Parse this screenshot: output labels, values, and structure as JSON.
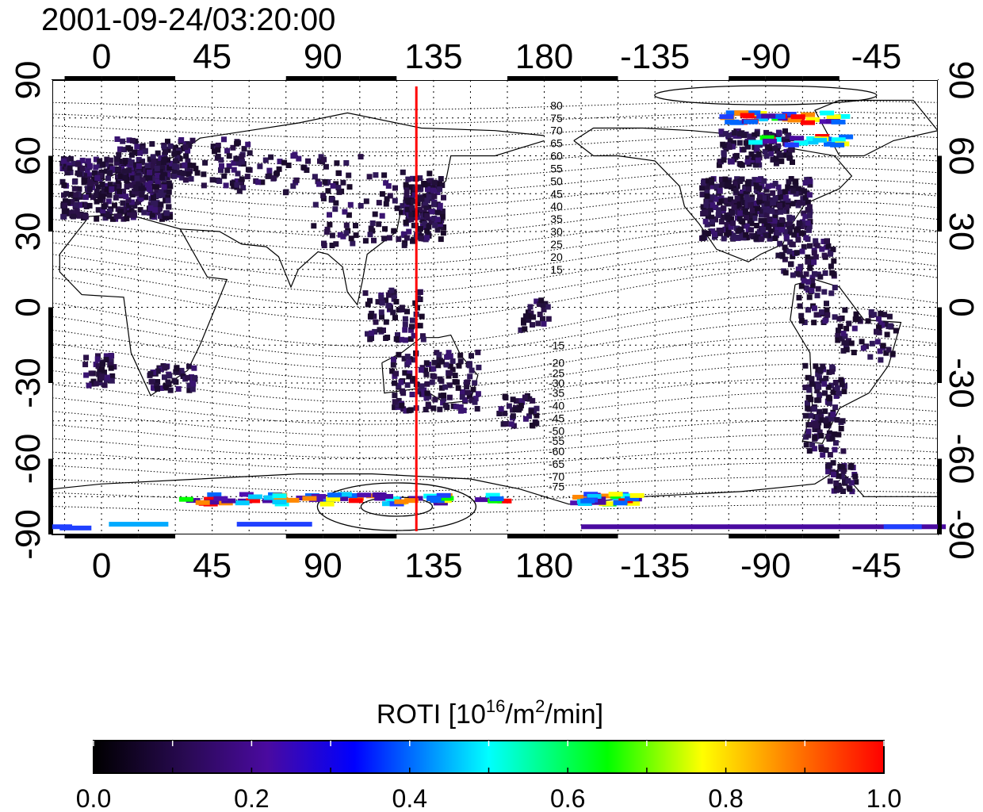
{
  "title": "2001-09-24/03:20:00",
  "top_axis_labels": [
    "0",
    "45",
    "90",
    "135",
    "180",
    "-135",
    "-90",
    "-45"
  ],
  "bottom_axis_labels": [
    "0",
    "45",
    "90",
    "135",
    "180",
    "-135",
    "-90",
    "-45"
  ],
  "left_axis_labels": [
    "90",
    "60",
    "30",
    "0",
    "-30",
    "-60",
    "-90"
  ],
  "right_axis_labels": [
    "90",
    "60",
    "30",
    "0",
    "-30",
    "-60",
    "-90"
  ],
  "contour_labels_north": [
    "80",
    "75",
    "70",
    "65",
    "60",
    "55",
    "50",
    "45",
    "40",
    "35",
    "30",
    "25",
    "20",
    "15"
  ],
  "contour_labels_south": [
    "-15",
    "-20",
    "-25",
    "-30",
    "-35",
    "-40",
    "-45",
    "-50",
    "-55",
    "-60",
    "-65",
    "-70",
    "-75"
  ],
  "colorbar": {
    "title_main": "ROTI  [10",
    "title_sup1": "16",
    "title_mid": "/m",
    "title_sup2": "2",
    "title_end": "/min]",
    "tick_labels": [
      "0.0",
      "0.2",
      "0.4",
      "0.6",
      "0.8",
      "1.0"
    ],
    "range": [
      0.0,
      1.0
    ],
    "colors": [
      "#000000",
      "#3a0a6e",
      "#0000ff",
      "#00ffff",
      "#00ff00",
      "#ffff00",
      "#ff0000"
    ]
  },
  "meridian_marker": {
    "longitude": 128,
    "color": "#ff0000"
  },
  "map": {
    "lon_range": [
      -20,
      340
    ],
    "lat_range": [
      -90,
      90
    ]
  }
}
